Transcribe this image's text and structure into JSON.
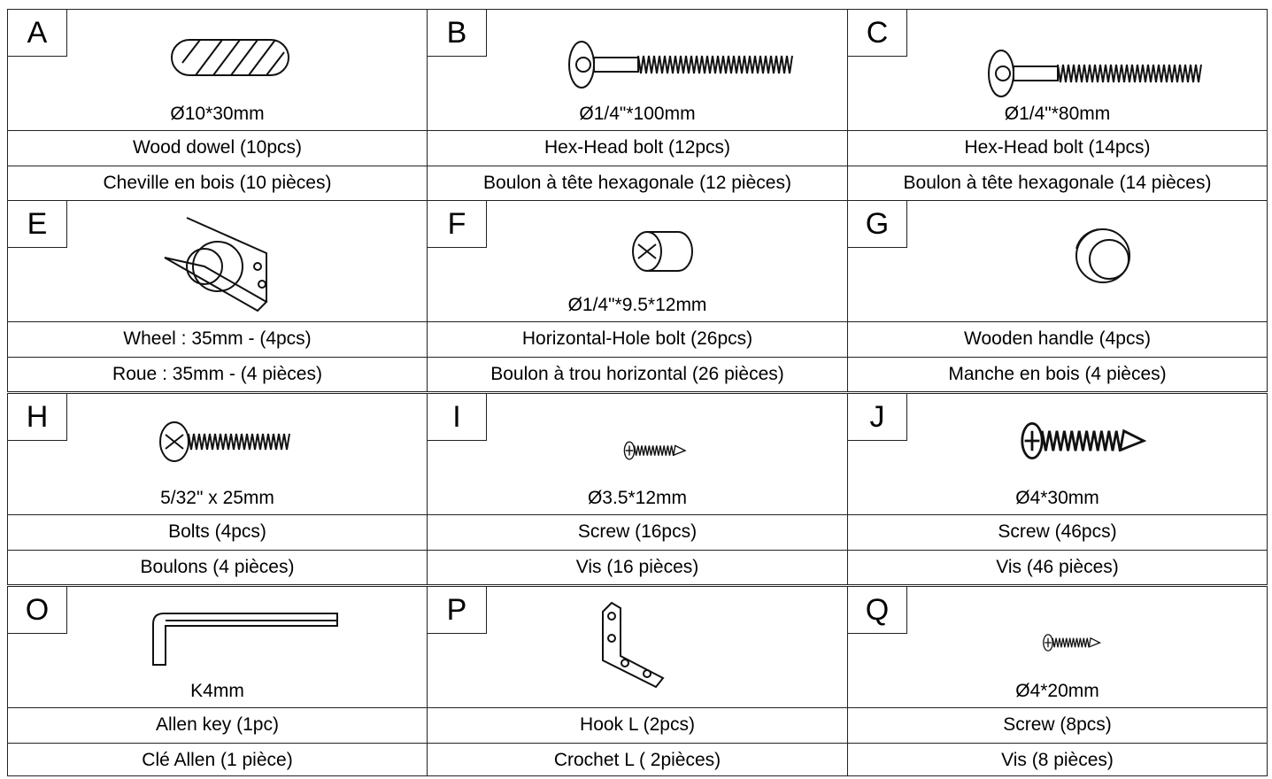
{
  "items": [
    {
      "letter": "A",
      "size": "Ø10*30mm",
      "en": "Wood dowel (10pcs)",
      "fr": "Cheville en bois (10 pièces)"
    },
    {
      "letter": "B",
      "size": "Ø1/4\"*100mm",
      "en": "Hex-Head bolt (12pcs)",
      "fr": "Boulon à tête hexagonale (12 pièces)"
    },
    {
      "letter": "C",
      "size": "Ø1/4\"*80mm",
      "en": "Hex-Head bolt (14pcs)",
      "fr": "Boulon à tête hexagonale (14 pièces)"
    },
    {
      "letter": "E",
      "en": "Wheel : 35mm - (4pcs)",
      "fr": "Roue : 35mm - (4 pièces)"
    },
    {
      "letter": "F",
      "size": "Ø1/4\"*9.5*12mm",
      "en": "Horizontal-Hole bolt (26pcs)",
      "fr": "Boulon à trou horizontal (26 pièces)"
    },
    {
      "letter": "G",
      "en": "Wooden handle (4pcs)",
      "fr": "Manche en bois (4 pièces)"
    },
    {
      "letter": "H",
      "size": "5/32\" x 25mm",
      "en": "Bolts (4pcs)",
      "fr": "Boulons (4 pièces)"
    },
    {
      "letter": "I",
      "size": "Ø3.5*12mm",
      "en": "Screw (16pcs)",
      "fr": "Vis (16 pièces)"
    },
    {
      "letter": "J",
      "size": "Ø4*30mm",
      "en": "Screw (46pcs)",
      "fr": "Vis (46 pièces)"
    },
    {
      "letter": "O",
      "size": "K4mm",
      "en": "Allen key (1pc)",
      "fr": "Clé Allen (1 pièce)"
    },
    {
      "letter": "P",
      "en": "Hook L (2pcs)",
      "fr": "Crochet L ( 2pièces)"
    },
    {
      "letter": "Q",
      "size": "Ø4*20mm",
      "en": "Screw (8pcs)",
      "fr": "Vis (8 pièces)"
    }
  ]
}
